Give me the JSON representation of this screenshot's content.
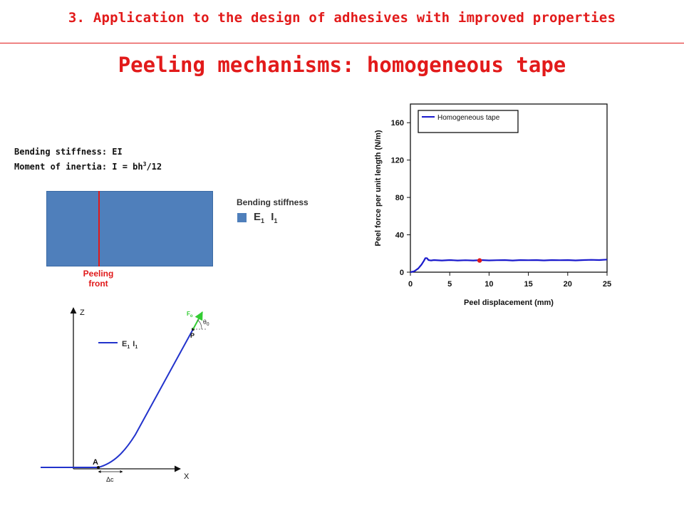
{
  "header": {
    "title": "3. Application to the design of adhesives with improved properties"
  },
  "slide_title": "Peeling mechanisms: homogeneous tape",
  "info": {
    "bending_stiffness_line": "Bending stiffness: EI",
    "moment_prefix": "Moment of inertia: I = bh",
    "moment_exp": "3",
    "moment_suffix": "/12"
  },
  "tape_diagram": {
    "peeling_front_line1": "Peeling",
    "peeling_front_line2": "front",
    "legend_title": "Bending stiffness",
    "legend_E": "E",
    "legend_E_sub": "1",
    "legend_I": "I",
    "legend_I_sub": "1",
    "colors": {
      "tape": "#4f7fbb",
      "front": "#e0191a"
    }
  },
  "peel_diagram": {
    "z_label": "Z",
    "x_label": "X",
    "point_A": "A",
    "point_P": "P",
    "delta_c": "Δc",
    "force_label": "F",
    "force_sub": "o",
    "theta_label": "θ",
    "theta_sub": "0",
    "legend_E": "E",
    "legend_E_sub": "1",
    "legend_I": "I",
    "legend_I_sub": "1",
    "colors": {
      "curve": "#2233cc",
      "force": "#33cc33"
    }
  },
  "chart_data": {
    "type": "line",
    "xlabel": "Peel displacement (mm)",
    "ylabel": "Peel force per unit length (N/m)",
    "xlim": [
      0,
      25
    ],
    "ylim": [
      0,
      180
    ],
    "xticks": [
      0,
      5,
      10,
      15,
      20,
      25
    ],
    "yticks": [
      0,
      40,
      80,
      120,
      160
    ],
    "legend_position": "top-left",
    "grid": false,
    "series": [
      {
        "name": "Homogeneous tape",
        "color": "#1a1acc",
        "x": [
          0,
          0.5,
          1.0,
          1.4,
          1.7,
          1.9,
          2.1,
          2.3,
          2.6,
          3,
          4,
          5,
          6,
          7,
          8,
          9,
          10,
          11,
          12,
          13,
          14,
          15,
          16,
          17,
          18,
          19,
          20,
          21,
          22,
          23,
          24,
          25
        ],
        "y": [
          0,
          1,
          4,
          8,
          12,
          15,
          15,
          13,
          12.5,
          13,
          12.5,
          13,
          12.5,
          12.8,
          12.5,
          13,
          12.6,
          12.8,
          13,
          12.5,
          13,
          12.8,
          13,
          12.6,
          13,
          12.8,
          13,
          12.6,
          13,
          13.2,
          13,
          13.5
        ]
      }
    ],
    "highlight_point": {
      "x": 8.8,
      "y": 12.5,
      "color": "#e0191a"
    }
  }
}
